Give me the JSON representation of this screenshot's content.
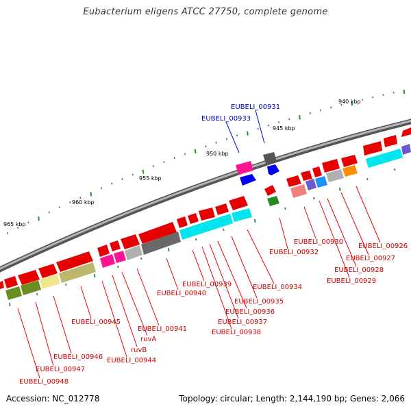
{
  "title": "Eubacterium eligens ATCC 27750, complete genome",
  "footer": {
    "accession": "Accession: NC_012778",
    "topology": "Topology: circular; Length: 2,144,190 bp; Genes: 2,066"
  },
  "colors": {
    "backbone": "#8c8c8c",
    "tick": "#2e8b2e",
    "label_red": "#cc0000",
    "label_blue": "#0000bb",
    "leader_red": "#ee0000",
    "leader_blue": "#0000ee"
  },
  "kbp_markers": [
    "940 kbp",
    "945 kbp",
    "950 kbp",
    "955 kbp",
    "960 kbp",
    "965 kbp"
  ],
  "gene_labels": [
    {
      "text": "EUBELI_00931",
      "color": "blue"
    },
    {
      "text": "EUBELI_00933",
      "color": "blue"
    },
    {
      "text": "EUBELI_00926",
      "color": "red"
    },
    {
      "text": "EUBELI_00927",
      "color": "red"
    },
    {
      "text": "EUBELI_00928",
      "color": "red"
    },
    {
      "text": "EUBELI_00929",
      "color": "red"
    },
    {
      "text": "EUBELI_00930",
      "color": "red"
    },
    {
      "text": "EUBELI_00932",
      "color": "red"
    },
    {
      "text": "EUBELI_00934",
      "color": "red"
    },
    {
      "text": "EUBELI_00935",
      "color": "red"
    },
    {
      "text": "EUBELI_00936",
      "color": "red"
    },
    {
      "text": "EUBELI_00937",
      "color": "red"
    },
    {
      "text": "EUBELI_00938",
      "color": "red"
    },
    {
      "text": "EUBELI_00939",
      "color": "red"
    },
    {
      "text": "EUBELI_00940",
      "color": "red"
    },
    {
      "text": "EUBELI_00941",
      "color": "red"
    },
    {
      "text": "ruvA",
      "color": "red"
    },
    {
      "text": "ruvB",
      "color": "red"
    },
    {
      "text": "EUBELI_00944",
      "color": "red"
    },
    {
      "text": "EUBELI_00945",
      "color": "red"
    },
    {
      "text": "EUBELI_00946",
      "color": "red"
    },
    {
      "text": "EUBELI_00947",
      "color": "red"
    },
    {
      "text": "EUBELI_00948",
      "color": "red"
    }
  ]
}
